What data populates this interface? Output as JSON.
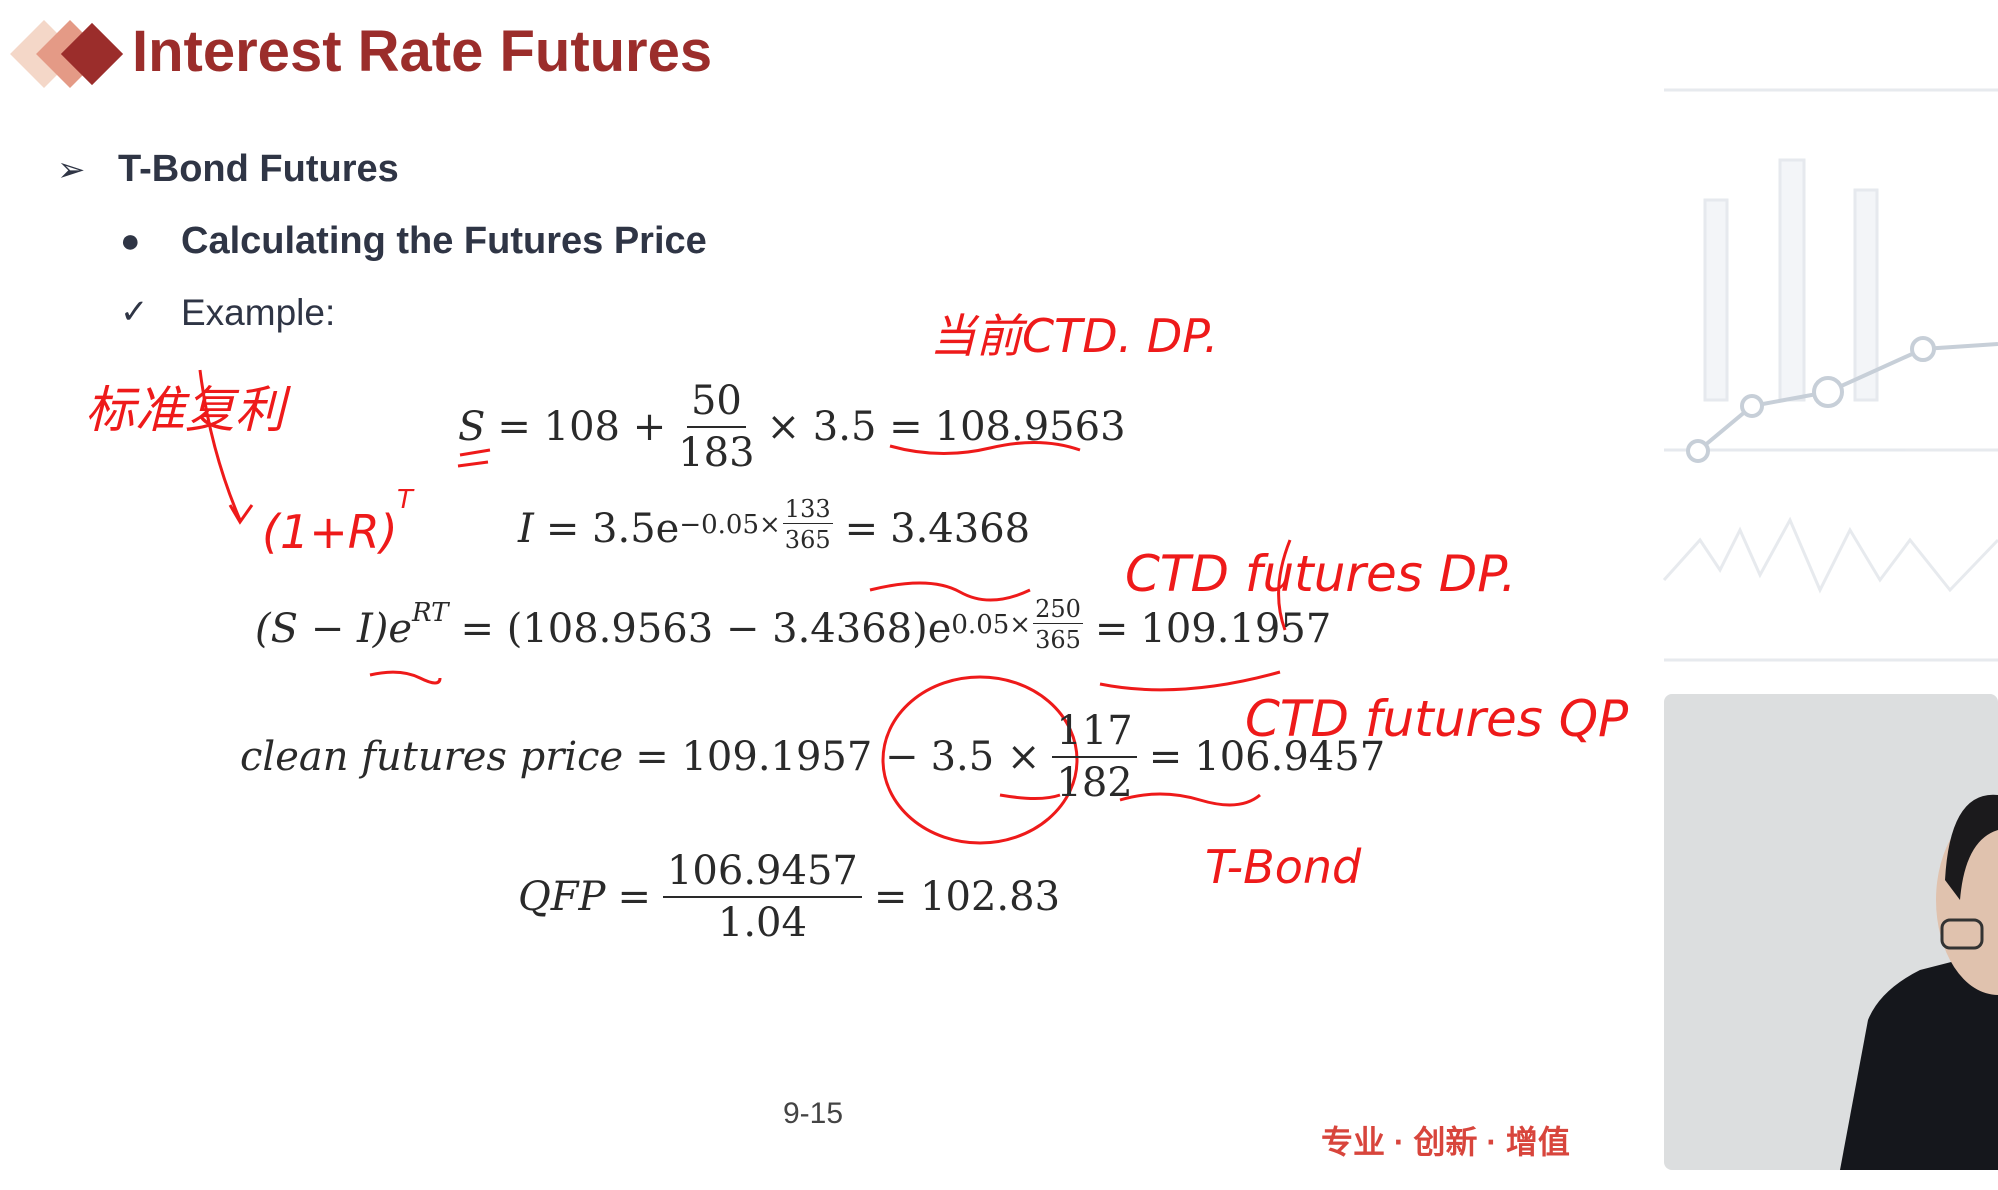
{
  "header": {
    "title": "Interest Rate Futures"
  },
  "bullets": {
    "level1": "T-Bond Futures",
    "level2": "Calculating the Futures Price",
    "level3": "Example:"
  },
  "equations": [
    {
      "lhs": "S",
      "mid": "= 108 +",
      "num": "50",
      "den": "183",
      "tail": "× 3.5 =",
      "result": "108.9563"
    },
    {
      "lhs": "I",
      "mid": "= 3.5e",
      "sup": "−0.05×",
      "num": "133",
      "den": "365",
      "tail": "=",
      "result": "3.4368"
    },
    {
      "lhs": "(S − I)e",
      "sup1": "RT",
      "mid": "= (108.9563 − 3.4368)e",
      "sup": "0.05×",
      "num": "250",
      "den": "365",
      "tail": "=",
      "result": "109.1957"
    },
    {
      "lhs": "clean futures price",
      "mid": "= 109.1957 −",
      "pre": "3.5 ×",
      "num": "117",
      "den": "182",
      "tail": "=",
      "result": "106.9457"
    },
    {
      "lhs": "QFP",
      "mid": "=",
      "num": "106.9457",
      "den": "1.04",
      "tail": "= 102.83"
    }
  ],
  "annotations": [
    "当前CTD. DP.",
    "标准复利",
    "(1+R)",
    "T",
    "CTD futures DP.",
    "CTD futures QP",
    "T-Bond"
  ],
  "page_number": "9-15",
  "footer_brand": "专业 · 创新 · 增值"
}
